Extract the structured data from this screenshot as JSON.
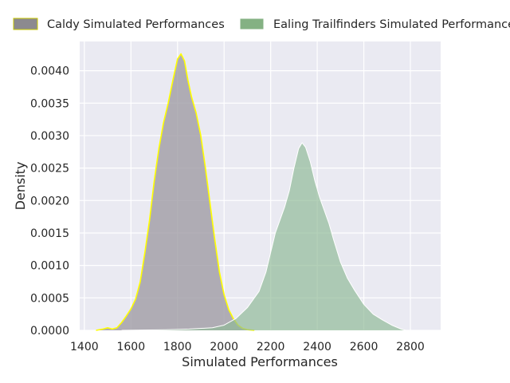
{
  "chart_data": {
    "type": "area",
    "title": "",
    "xlabel": "Simulated Performances",
    "ylabel": "Density",
    "xlim": [
      1380,
      2930
    ],
    "ylim": [
      0,
      0.00445
    ],
    "x_ticks": [
      1400,
      1600,
      1800,
      2000,
      2200,
      2400,
      2600,
      2800
    ],
    "x_tick_labels": [
      "1400",
      "1600",
      "1800",
      "2000",
      "2200",
      "2400",
      "2600",
      "2800"
    ],
    "y_ticks": [
      0,
      0.0005,
      0.001,
      0.0015,
      0.002,
      0.0025,
      0.003,
      0.0035,
      0.004
    ],
    "y_tick_labels": [
      "0.0000",
      "0.0005",
      "0.0010",
      "0.0015",
      "0.0020",
      "0.0025",
      "0.0030",
      "0.0035",
      "0.0040"
    ],
    "grid": true,
    "legend_position": "top",
    "series": [
      {
        "name": "Caldy Simulated Performances",
        "fill_color": "#9e9aa3",
        "legend_color": "#8c8a8f",
        "edge_color": "#ffff00",
        "points": [
          [
            1450,
            0
          ],
          [
            1480,
            2e-05
          ],
          [
            1500,
            4e-05
          ],
          [
            1520,
            2e-05
          ],
          [
            1540,
            4e-05
          ],
          [
            1560,
            0.00012
          ],
          [
            1580,
            0.00022
          ],
          [
            1600,
            0.00033
          ],
          [
            1620,
            0.00048
          ],
          [
            1640,
            0.00075
          ],
          [
            1660,
            0.0012
          ],
          [
            1680,
            0.0017
          ],
          [
            1700,
            0.0023
          ],
          [
            1720,
            0.0028
          ],
          [
            1740,
            0.0032
          ],
          [
            1760,
            0.0035
          ],
          [
            1780,
            0.00385
          ],
          [
            1800,
            0.00418
          ],
          [
            1815,
            0.00426
          ],
          [
            1830,
            0.00415
          ],
          [
            1845,
            0.00385
          ],
          [
            1860,
            0.0036
          ],
          [
            1880,
            0.00335
          ],
          [
            1900,
            0.003
          ],
          [
            1920,
            0.0025
          ],
          [
            1940,
            0.00195
          ],
          [
            1960,
            0.0014
          ],
          [
            1980,
            0.0009
          ],
          [
            2000,
            0.00055
          ],
          [
            2020,
            0.00032
          ],
          [
            2040,
            0.00018
          ],
          [
            2060,
            8e-05
          ],
          [
            2080,
            3e-05
          ],
          [
            2100,
            1e-05
          ],
          [
            2130,
            0
          ]
        ]
      },
      {
        "name": "Ealing Trailfinders Simulated Performances",
        "fill_color": "#8fb996",
        "legend_color": "#84b183",
        "edge_color": "#ffffff",
        "points": [
          [
            1560,
            0
          ],
          [
            1650,
            5e-06
          ],
          [
            1750,
            1e-05
          ],
          [
            1850,
            2e-05
          ],
          [
            1950,
            4e-05
          ],
          [
            2000,
            8e-05
          ],
          [
            2050,
            0.00018
          ],
          [
            2100,
            0.00035
          ],
          [
            2150,
            0.0006
          ],
          [
            2180,
            0.0009
          ],
          [
            2200,
            0.0012
          ],
          [
            2220,
            0.0015
          ],
          [
            2240,
            0.0017
          ],
          [
            2260,
            0.0019
          ],
          [
            2280,
            0.00215
          ],
          [
            2300,
            0.0025
          ],
          [
            2320,
            0.0028
          ],
          [
            2335,
            0.00289
          ],
          [
            2350,
            0.00282
          ],
          [
            2370,
            0.0026
          ],
          [
            2390,
            0.0023
          ],
          [
            2410,
            0.00205
          ],
          [
            2430,
            0.00185
          ],
          [
            2450,
            0.00165
          ],
          [
            2470,
            0.0014
          ],
          [
            2500,
            0.00105
          ],
          [
            2530,
            0.0008
          ],
          [
            2560,
            0.00062
          ],
          [
            2600,
            0.0004
          ],
          [
            2640,
            0.00025
          ],
          [
            2680,
            0.00016
          ],
          [
            2720,
            8e-05
          ],
          [
            2760,
            2e-05
          ],
          [
            2780,
            0
          ]
        ]
      }
    ]
  }
}
